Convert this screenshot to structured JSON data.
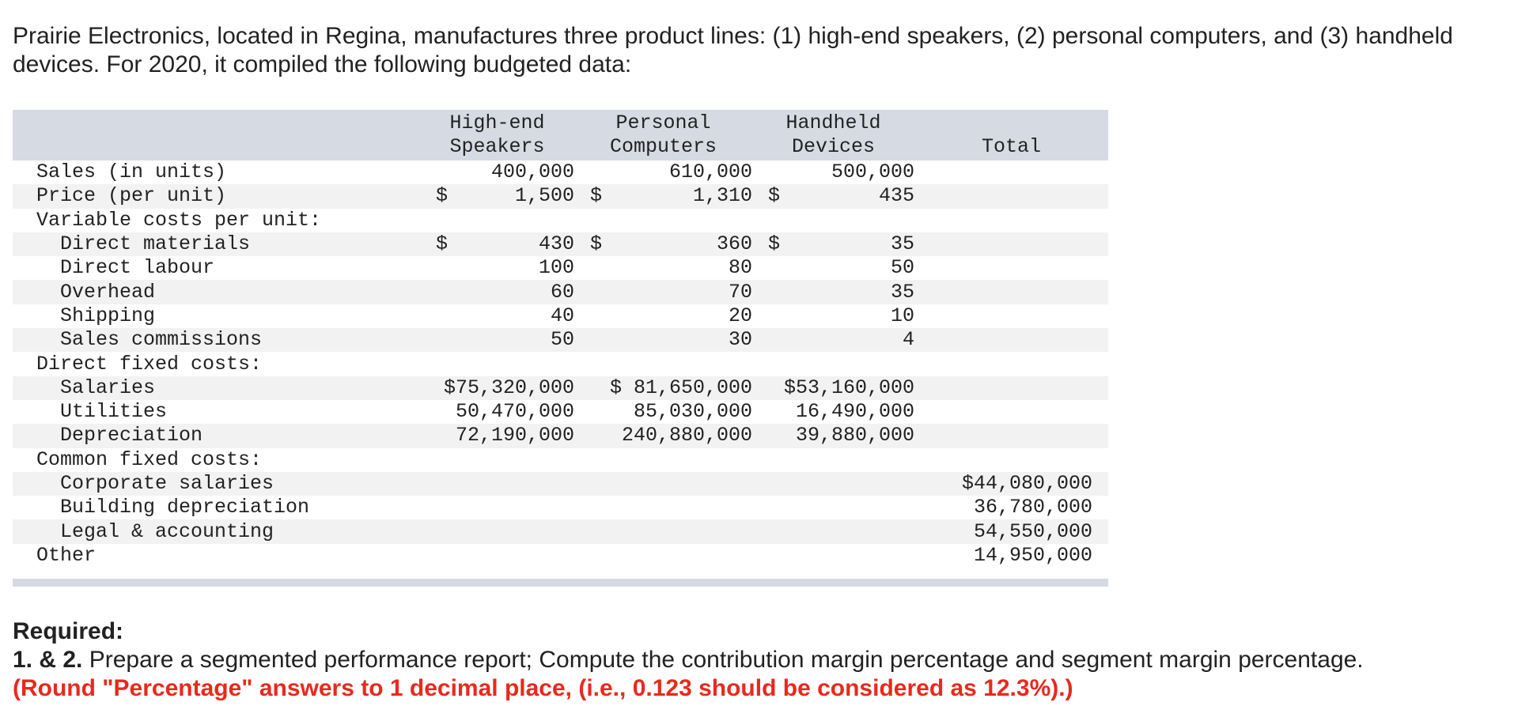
{
  "intro": "Prairie Electronics, located in Regina, manufactures three product lines: (1) high-end speakers, (2) personal computers, and (3) handheld devices. For 2020, it compiled the following budgeted data:",
  "table": {
    "headers": {
      "col1_line1": "High-end",
      "col1_line2": "Speakers",
      "col2_line1": "Personal",
      "col2_line2": "Computers",
      "col3_line1": "Handheld",
      "col3_line2": "Devices",
      "total": "Total"
    },
    "sales": {
      "label": "Sales (in units)",
      "v1": "400,000",
      "v2": "610,000",
      "v3": "500,000"
    },
    "price": {
      "label": "Price (per unit)",
      "c": "$",
      "v1": "1,500",
      "v2": "1,310",
      "v3": "435"
    },
    "variable_header": "Variable costs per unit:",
    "direct_materials": {
      "label": "Direct materials",
      "c": "$",
      "v1": "430",
      "v2": "360",
      "v3": "35"
    },
    "direct_labour": {
      "label": "Direct labour",
      "v1": "100",
      "v2": "80",
      "v3": "50"
    },
    "overhead": {
      "label": "Overhead",
      "v1": "60",
      "v2": "70",
      "v3": "35"
    },
    "shipping": {
      "label": "Shipping",
      "v1": "40",
      "v2": "20",
      "v3": "10"
    },
    "sales_commissions": {
      "label": "Sales commissions",
      "v1": "50",
      "v2": "30",
      "v3": "4"
    },
    "direct_fixed_header": "Direct fixed costs:",
    "salaries": {
      "label": "Salaries",
      "v1": "$75,320,000",
      "v2": "$ 81,650,000",
      "v3": "$53,160,000"
    },
    "utilities": {
      "label": "Utilities",
      "v1": "50,470,000",
      "v2": "85,030,000",
      "v3": "16,490,000"
    },
    "depreciation": {
      "label": "Depreciation",
      "v1": "72,190,000",
      "v2": "240,880,000",
      "v3": "39,880,000"
    },
    "common_fixed_header": "Common fixed costs:",
    "corporate_salaries": {
      "label": "Corporate salaries",
      "total": "$44,080,000"
    },
    "building_depreciation": {
      "label": "Building depreciation",
      "total": "36,780,000"
    },
    "legal_accounting": {
      "label": "Legal & accounting",
      "total": "54,550,000"
    },
    "other": {
      "label": "Other",
      "total": "14,950,000"
    }
  },
  "required": {
    "title": "Required:",
    "number": "1. & 2.",
    "text": " Prepare a segmented performance report; Compute the contribution margin percentage and segment margin percentage.",
    "note": "(Round \"Percentage\" answers to 1 decimal place, (i.e., 0.123 should be considered as 12.3%).)"
  }
}
